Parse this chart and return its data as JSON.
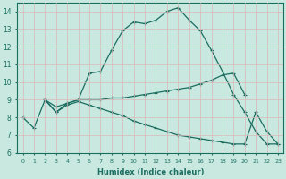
{
  "xlabel": "Humidex (Indice chaleur)",
  "background_color": "#c8e8e0",
  "grid_color": "#b8d8d0",
  "line_color": "#1a6e60",
  "xlim": [
    -0.5,
    23.5
  ],
  "ylim": [
    6,
    14.5
  ],
  "yticks": [
    6,
    7,
    8,
    9,
    10,
    11,
    12,
    13,
    14
  ],
  "xticks": [
    0,
    1,
    2,
    3,
    4,
    5,
    6,
    7,
    8,
    9,
    10,
    11,
    12,
    13,
    14,
    15,
    16,
    17,
    18,
    19,
    20,
    21,
    22,
    23
  ],
  "line1_x": [
    0,
    1,
    2,
    3,
    4,
    5,
    6,
    7,
    8,
    9,
    10,
    11,
    12,
    13,
    14,
    15,
    16,
    17,
    18,
    19,
    20,
    21,
    22,
    23
  ],
  "line1_y": [
    8.0,
    7.4,
    9.0,
    8.3,
    8.8,
    9.0,
    10.5,
    10.6,
    11.8,
    12.9,
    13.4,
    13.3,
    13.5,
    14.0,
    14.2,
    13.5,
    12.9,
    11.8,
    10.6,
    9.3,
    8.3,
    7.2,
    6.5,
    6.5
  ],
  "line2_x": [
    2,
    3,
    4,
    5,
    6,
    7,
    8,
    9,
    10,
    11,
    12,
    13,
    14,
    15,
    16,
    17,
    18,
    19,
    20
  ],
  "line2_y": [
    9.0,
    8.6,
    8.8,
    9.0,
    9.0,
    9.0,
    9.1,
    9.1,
    9.2,
    9.3,
    9.4,
    9.5,
    9.6,
    9.7,
    9.9,
    10.1,
    10.4,
    10.5,
    9.3
  ],
  "line3_x": [
    2,
    3,
    4,
    5,
    6,
    7,
    8,
    9,
    10,
    11,
    12,
    13,
    14,
    15,
    16,
    17,
    18,
    19,
    20,
    21,
    22,
    23
  ],
  "line3_y": [
    9.0,
    8.3,
    8.7,
    8.9,
    8.7,
    8.5,
    8.3,
    8.1,
    7.8,
    7.6,
    7.4,
    7.2,
    7.0,
    6.9,
    6.8,
    6.7,
    6.6,
    6.5,
    6.5,
    8.3,
    7.2,
    6.5
  ]
}
